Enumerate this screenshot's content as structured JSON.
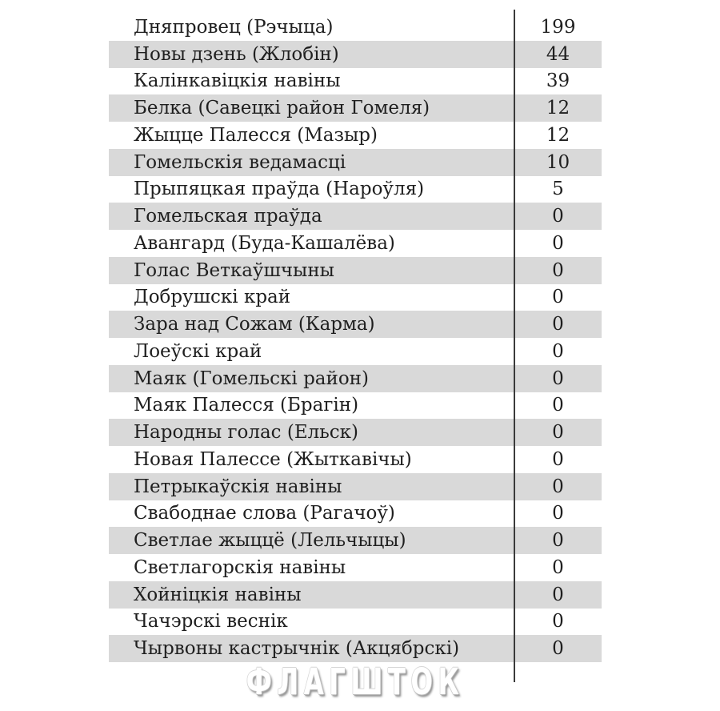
{
  "chart_data": {
    "type": "table",
    "title": "",
    "categories": [
      "Дняпровец (Рэчыца)",
      "Новы дзень (Жлобін)",
      "Калінкавіцкія навіны",
      "Белка (Савецкі район Гомеля)",
      "Жыцце Палесся (Мазыр)",
      "Гомельскія ведамасці",
      "Прыпяцкая праўда (Нароўля)",
      "Гомельская праўда",
      "Авангард (Буда-Кашалёва)",
      "Голас Веткаўшчыны",
      "Добрушскі край",
      "Зара над Сожам (Карма)",
      "Лоеўскі край",
      "Маяк (Гомельскі район)",
      "Маяк Палесся (Брагін)",
      "Народны голас (Ельск)",
      "Новая Палессе (Жыткавічы)",
      "Петрыкаўскія навіны",
      "Свабоднае слова (Рагачоў)",
      "Светлае жыццё (Лельчыцы)",
      "Светлагорскія навіны",
      "Хойніцкія навіны",
      "Чачэрскі веснік",
      "Чырвоны кастрычнік (Акцябрскі)"
    ],
    "values": [
      199,
      44,
      39,
      12,
      12,
      10,
      5,
      0,
      0,
      0,
      0,
      0,
      0,
      0,
      0,
      0,
      0,
      0,
      0,
      0,
      0,
      0,
      0,
      0
    ],
    "layout": {
      "zebra_striping": true,
      "stripe_rows": "even",
      "value_column_divider": true
    }
  },
  "watermark": {
    "text": "ФЛАГШТОК"
  },
  "colors": {
    "background": "#ffffff",
    "row_alt": "#d9d9d9",
    "text": "#1f1f1f",
    "divider": "#3b3b3b",
    "watermark_fill": "#ffffff",
    "watermark_shadow": "#8f8f8f"
  }
}
